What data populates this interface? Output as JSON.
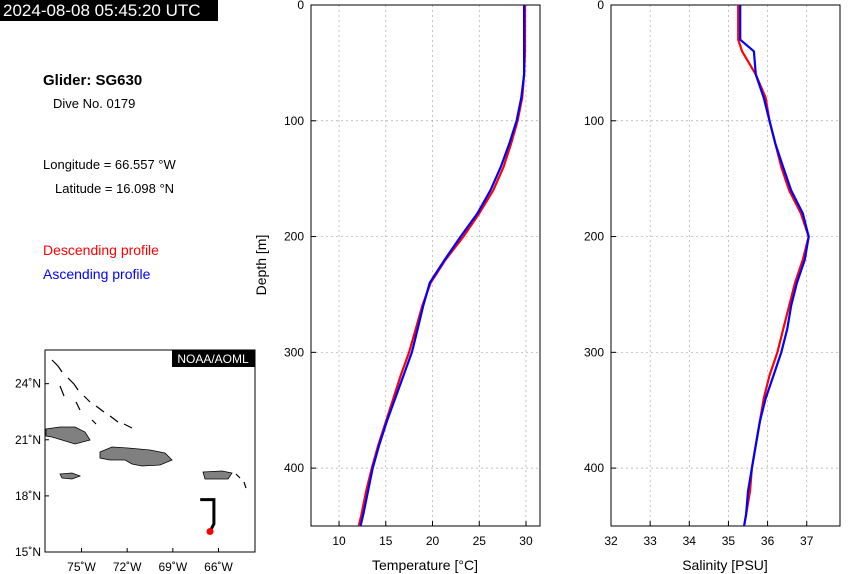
{
  "header": {
    "timestamp": "2024-08-08 05:45:20 UTC",
    "glider": "Glider: SG630",
    "dive": "Dive No. 0179",
    "longitude": "Longitude = 66.557 °W",
    "latitude": "Latitude = 16.098 °N"
  },
  "legend": {
    "descending": "Descending profile",
    "ascending": "Ascending profile"
  },
  "colors": {
    "descending": "#ff0000",
    "ascending": "#0000ff",
    "land": "#808080",
    "track": "#000000"
  },
  "map": {
    "badge": "NOAA/AOML",
    "lat_ticks": [
      {
        "v": 24,
        "label": "24˚N"
      },
      {
        "v": 21,
        "label": "21˚N"
      },
      {
        "v": 18,
        "label": "18˚N"
      },
      {
        "v": 15,
        "label": "15˚N"
      }
    ],
    "lon_ticks": [
      {
        "v": -75,
        "label": "75˚W"
      },
      {
        "v": -72,
        "label": "72˚W"
      },
      {
        "v": -69,
        "label": "69˚W"
      },
      {
        "v": -66,
        "label": "66˚W"
      }
    ],
    "lon_range": [
      -77.4,
      -63.6
    ],
    "lat_range": [
      15.0,
      25.8
    ],
    "glider_position": {
      "lon": -66.557,
      "lat": 16.098
    },
    "track": [
      {
        "lon": -67.2,
        "lat": 17.8
      },
      {
        "lon": -66.3,
        "lat": 17.8
      },
      {
        "lon": -66.3,
        "lat": 16.5
      },
      {
        "lon": -66.557,
        "lat": 16.098
      }
    ]
  },
  "chart_data": [
    {
      "type": "line",
      "xlabel": "Temperature [°C]",
      "ylabel": "Depth [m]",
      "xlim": [
        7,
        31.5
      ],
      "ylim": [
        450,
        0
      ],
      "xticks": [
        10,
        15,
        20,
        25,
        30
      ],
      "yticks": [
        0,
        100,
        200,
        300,
        400
      ],
      "grid": true,
      "series": [
        {
          "name": "Descending profile",
          "x": [
            29.9,
            29.9,
            29.9,
            29.8,
            29.6,
            29.1,
            28.4,
            27.6,
            26.5,
            25.0,
            23.3,
            21.4,
            19.8,
            18.9,
            18.2,
            17.5,
            16.6,
            15.8,
            15.0,
            14.2,
            13.5,
            12.9,
            12.4,
            12.1
          ],
          "y": [
            0,
            20,
            40,
            60,
            80,
            100,
            120,
            140,
            160,
            180,
            200,
            220,
            240,
            260,
            280,
            300,
            320,
            340,
            360,
            380,
            400,
            420,
            440,
            450
          ]
        },
        {
          "name": "Ascending profile",
          "x": [
            29.8,
            29.8,
            29.8,
            29.8,
            29.5,
            29.0,
            28.2,
            27.3,
            26.2,
            24.8,
            23.0,
            21.3,
            19.7,
            19.0,
            18.4,
            17.8,
            16.9,
            16.0,
            15.1,
            14.3,
            13.6,
            13.1,
            12.6,
            12.3
          ],
          "y": [
            0,
            20,
            40,
            60,
            80,
            100,
            120,
            140,
            160,
            180,
            200,
            220,
            240,
            260,
            280,
            300,
            320,
            340,
            360,
            380,
            400,
            420,
            440,
            450
          ]
        }
      ]
    },
    {
      "type": "line",
      "xlabel": "Salinity [PSU]",
      "xlim": [
        32,
        37.85
      ],
      "ylim": [
        450,
        0
      ],
      "xticks": [
        32,
        33,
        34,
        35,
        36,
        37
      ],
      "yticks": [
        0,
        100,
        200,
        300,
        400
      ],
      "grid": true,
      "series": [
        {
          "name": "Descending profile",
          "x": [
            35.25,
            35.25,
            35.35,
            35.7,
            35.95,
            36.05,
            36.2,
            36.35,
            36.55,
            36.85,
            37.05,
            36.9,
            36.7,
            36.55,
            36.4,
            36.25,
            36.05,
            35.9,
            35.8,
            35.7,
            35.6,
            35.55,
            35.45,
            35.4
          ],
          "y": [
            0,
            30,
            40,
            60,
            80,
            100,
            120,
            140,
            160,
            180,
            200,
            220,
            240,
            260,
            280,
            300,
            320,
            340,
            360,
            380,
            400,
            420,
            440,
            450
          ]
        },
        {
          "name": "Ascending profile",
          "x": [
            35.3,
            35.3,
            35.65,
            35.7,
            35.9,
            36.05,
            36.2,
            36.4,
            36.6,
            36.9,
            37.05,
            36.95,
            36.75,
            36.6,
            36.5,
            36.35,
            36.15,
            35.95,
            35.8,
            35.7,
            35.6,
            35.5,
            35.45,
            35.4
          ],
          "y": [
            0,
            30,
            40,
            60,
            80,
            100,
            120,
            140,
            160,
            180,
            200,
            220,
            240,
            260,
            280,
            300,
            320,
            340,
            360,
            380,
            400,
            420,
            440,
            450
          ]
        }
      ]
    }
  ]
}
